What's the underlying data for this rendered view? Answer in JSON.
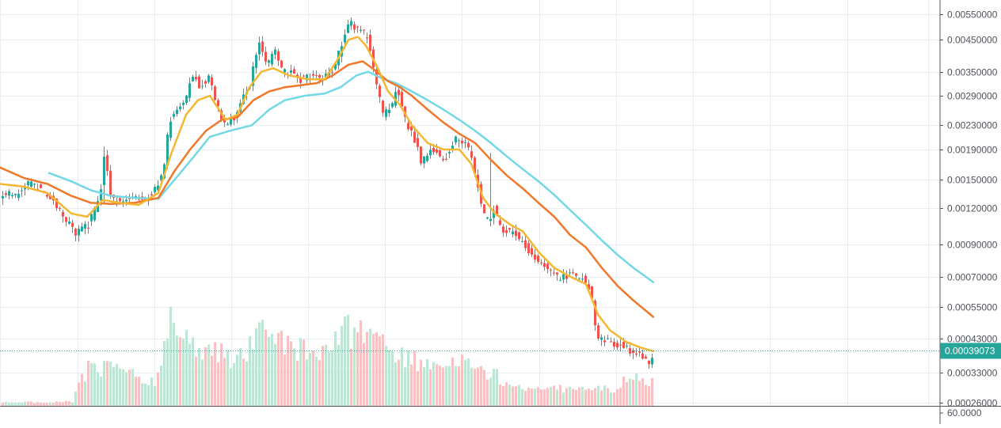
{
  "colors": {
    "background": "#ffffff",
    "grid": "#e8eef3",
    "axis_line": "#555555",
    "axis_text": "#50535e",
    "candle_up": "#26a69a",
    "candle_down": "#ef5350",
    "volume_up": "#bfe6d4",
    "volume_down": "#f7c2c4",
    "ma_fast": "#f5b731",
    "ma_mid": "#f0782a",
    "ma_slow": "#72d8e6",
    "last_price_bg": "#26a69a",
    "last_price_text": "#ffffff"
  },
  "chart_data": {
    "type": "candlestick",
    "price_scale": "log",
    "y_ticks": [
      "0.00550000",
      "0.00450000",
      "0.00350000",
      "0.00290000",
      "0.00230000",
      "0.00190000",
      "0.00150000",
      "0.00120000",
      "0.00090000",
      "0.00070000",
      "0.00055000",
      "0.00043000",
      "0.00033000",
      "0.00026000"
    ],
    "volume_scale_label": "60.0000",
    "last_price_label": "0.00039073",
    "last_price": 0.00039073,
    "grid": true,
    "ma_fast_y": [
      [
        0,
        0.00145
      ],
      [
        30,
        0.00142
      ],
      [
        60,
        0.00135
      ],
      [
        90,
        0.00115
      ],
      [
        110,
        0.00112
      ],
      [
        130,
        0.00128
      ],
      [
        150,
        0.00125
      ],
      [
        175,
        0.00123
      ],
      [
        200,
        0.00135
      ],
      [
        215,
        0.0018
      ],
      [
        235,
        0.0025
      ],
      [
        250,
        0.0028
      ],
      [
        265,
        0.0029
      ],
      [
        285,
        0.0024
      ],
      [
        300,
        0.0025
      ],
      [
        315,
        0.0031
      ],
      [
        330,
        0.0035
      ],
      [
        345,
        0.0036
      ],
      [
        365,
        0.0034
      ],
      [
        390,
        0.0033
      ],
      [
        410,
        0.0033
      ],
      [
        425,
        0.0038
      ],
      [
        440,
        0.0045
      ],
      [
        452,
        0.0046
      ],
      [
        462,
        0.0043
      ],
      [
        475,
        0.0037
      ],
      [
        490,
        0.003
      ],
      [
        505,
        0.0027
      ],
      [
        520,
        0.0023
      ],
      [
        540,
        0.002
      ],
      [
        560,
        0.0019
      ],
      [
        580,
        0.0019
      ],
      [
        595,
        0.0017
      ],
      [
        610,
        0.0013
      ],
      [
        625,
        0.00115
      ],
      [
        645,
        0.00105
      ],
      [
        660,
        0.001
      ],
      [
        680,
        0.00085
      ],
      [
        700,
        0.00075
      ],
      [
        720,
        0.0007
      ],
      [
        740,
        0.00066
      ],
      [
        755,
        0.00052
      ],
      [
        770,
        0.00046
      ],
      [
        790,
        0.00042
      ],
      [
        810,
        0.0004
      ],
      [
        825,
        0.00039
      ]
    ],
    "ma_mid_y": [
      [
        0,
        0.00165
      ],
      [
        30,
        0.00152
      ],
      [
        60,
        0.00145
      ],
      [
        90,
        0.00132
      ],
      [
        115,
        0.00125
      ],
      [
        140,
        0.00124
      ],
      [
        170,
        0.00125
      ],
      [
        200,
        0.0013
      ],
      [
        220,
        0.0016
      ],
      [
        240,
        0.0019
      ],
      [
        260,
        0.0022
      ],
      [
        280,
        0.0024
      ],
      [
        300,
        0.00245
      ],
      [
        320,
        0.0028
      ],
      [
        340,
        0.003
      ],
      [
        360,
        0.0031
      ],
      [
        380,
        0.00315
      ],
      [
        400,
        0.0032
      ],
      [
        420,
        0.0034
      ],
      [
        440,
        0.0037
      ],
      [
        458,
        0.0038
      ],
      [
        470,
        0.0036
      ],
      [
        490,
        0.00325
      ],
      [
        505,
        0.0031
      ],
      [
        520,
        0.0029
      ],
      [
        540,
        0.0026
      ],
      [
        560,
        0.00235
      ],
      [
        580,
        0.00215
      ],
      [
        600,
        0.002
      ],
      [
        620,
        0.00175
      ],
      [
        640,
        0.00155
      ],
      [
        660,
        0.0014
      ],
      [
        680,
        0.00125
      ],
      [
        700,
        0.00112
      ],
      [
        720,
        0.00097
      ],
      [
        740,
        0.00088
      ],
      [
        760,
        0.00075
      ],
      [
        780,
        0.00065
      ],
      [
        800,
        0.00058
      ],
      [
        825,
        0.00051
      ]
    ],
    "ma_slow_y": [
      [
        62,
        0.00158
      ],
      [
        90,
        0.00148
      ],
      [
        115,
        0.00138
      ],
      [
        140,
        0.00132
      ],
      [
        170,
        0.0013
      ],
      [
        200,
        0.00129
      ],
      [
        225,
        0.00155
      ],
      [
        245,
        0.0018
      ],
      [
        265,
        0.0021
      ],
      [
        290,
        0.0022
      ],
      [
        318,
        0.0023
      ],
      [
        340,
        0.0026
      ],
      [
        360,
        0.0028
      ],
      [
        385,
        0.0029
      ],
      [
        410,
        0.00295
      ],
      [
        430,
        0.0031
      ],
      [
        450,
        0.0034
      ],
      [
        465,
        0.0035
      ],
      [
        485,
        0.0033
      ],
      [
        500,
        0.0032
      ],
      [
        520,
        0.003
      ],
      [
        540,
        0.0028
      ],
      [
        560,
        0.0026
      ],
      [
        580,
        0.0024
      ],
      [
        600,
        0.0022
      ],
      [
        620,
        0.002
      ],
      [
        640,
        0.0018
      ],
      [
        660,
        0.00163
      ],
      [
        680,
        0.00148
      ],
      [
        700,
        0.00133
      ],
      [
        720,
        0.00118
      ],
      [
        740,
        0.00105
      ],
      [
        760,
        0.00093
      ],
      [
        780,
        0.00083
      ],
      [
        800,
        0.00075
      ],
      [
        825,
        0.00067
      ]
    ],
    "price_path": [
      [
        0,
        0.00132
      ],
      [
        20,
        0.00134
      ],
      [
        35,
        0.00145
      ],
      [
        50,
        0.0014
      ],
      [
        65,
        0.0013
      ],
      [
        80,
        0.0011
      ],
      [
        95,
        0.00098
      ],
      [
        110,
        0.00105
      ],
      [
        125,
        0.0013
      ],
      [
        130,
        0.00185
      ],
      [
        138,
        0.0013
      ],
      [
        150,
        0.00125
      ],
      [
        165,
        0.0013
      ],
      [
        180,
        0.00128
      ],
      [
        195,
        0.0014
      ],
      [
        205,
        0.0016
      ],
      [
        213,
        0.0024
      ],
      [
        222,
        0.0026
      ],
      [
        232,
        0.0028
      ],
      [
        242,
        0.0034
      ],
      [
        252,
        0.0031
      ],
      [
        262,
        0.0034
      ],
      [
        272,
        0.0027
      ],
      [
        282,
        0.0023
      ],
      [
        292,
        0.0024
      ],
      [
        302,
        0.0027
      ],
      [
        315,
        0.0032
      ],
      [
        325,
        0.0044
      ],
      [
        335,
        0.0036
      ],
      [
        345,
        0.0042
      ],
      [
        355,
        0.0035
      ],
      [
        365,
        0.0035
      ],
      [
        378,
        0.0033
      ],
      [
        392,
        0.0034
      ],
      [
        405,
        0.0033
      ],
      [
        418,
        0.0035
      ],
      [
        428,
        0.0042
      ],
      [
        440,
        0.0051
      ],
      [
        452,
        0.0049
      ],
      [
        462,
        0.0046
      ],
      [
        472,
        0.0033
      ],
      [
        482,
        0.0025
      ],
      [
        492,
        0.0026
      ],
      [
        500,
        0.0031
      ],
      [
        510,
        0.0024
      ],
      [
        520,
        0.0021
      ],
      [
        530,
        0.00175
      ],
      [
        545,
        0.0019
      ],
      [
        560,
        0.00175
      ],
      [
        575,
        0.0021
      ],
      [
        590,
        0.0019
      ],
      [
        600,
        0.0015
      ],
      [
        608,
        0.00115
      ],
      [
        616,
        0.0011
      ],
      [
        622,
        0.0012
      ],
      [
        630,
        0.00102
      ],
      [
        645,
        0.001
      ],
      [
        660,
        0.0009
      ],
      [
        675,
        0.0008
      ],
      [
        690,
        0.00075
      ],
      [
        705,
        0.00068
      ],
      [
        718,
        0.00072
      ],
      [
        732,
        0.0007
      ],
      [
        745,
        0.00062
      ],
      [
        752,
        0.00043
      ],
      [
        765,
        0.00042
      ],
      [
        780,
        0.00041
      ],
      [
        795,
        0.00039
      ],
      [
        810,
        0.00037
      ],
      [
        818,
        0.00036
      ],
      [
        824,
        0.00039
      ]
    ],
    "volume_path": [
      [
        0,
        4
      ],
      [
        90,
        5
      ],
      [
        100,
        28
      ],
      [
        110,
        45
      ],
      [
        140,
        48
      ],
      [
        195,
        28
      ],
      [
        205,
        60
      ],
      [
        213,
        125
      ],
      [
        220,
        90
      ],
      [
        240,
        80
      ],
      [
        260,
        70
      ],
      [
        300,
        55
      ],
      [
        315,
        70
      ],
      [
        325,
        85
      ],
      [
        345,
        80
      ],
      [
        360,
        75
      ],
      [
        380,
        70
      ],
      [
        400,
        55
      ],
      [
        420,
        75
      ],
      [
        430,
        90
      ],
      [
        450,
        85
      ],
      [
        470,
        80
      ],
      [
        490,
        65
      ],
      [
        500,
        60
      ],
      [
        520,
        55
      ],
      [
        540,
        50
      ],
      [
        560,
        55
      ],
      [
        580,
        50
      ],
      [
        600,
        45
      ],
      [
        620,
        40
      ],
      [
        640,
        25
      ],
      [
        660,
        22
      ],
      [
        680,
        22
      ],
      [
        700,
        20
      ],
      [
        730,
        22
      ],
      [
        760,
        20
      ],
      [
        780,
        20
      ],
      [
        790,
        35
      ],
      [
        800,
        32
      ],
      [
        825,
        30
      ]
    ]
  }
}
